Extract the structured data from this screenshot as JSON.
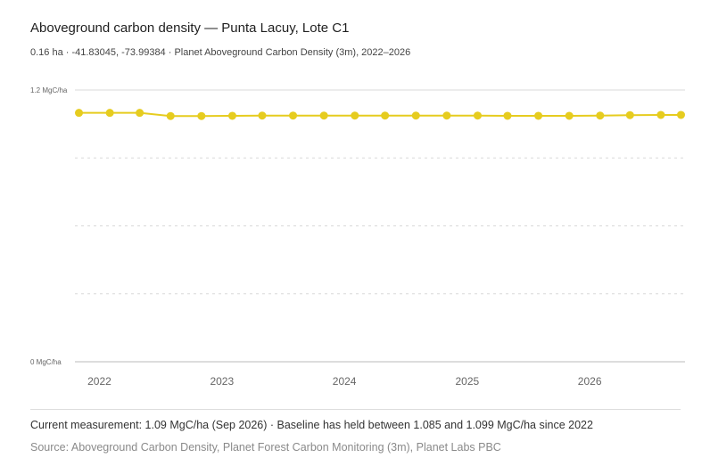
{
  "header": {
    "title": "Aboveground carbon density — Punta Lacuy, Lote C1",
    "subtitle": "0.16 ha · -41.83045, -73.99384 · Planet Aboveground Carbon Density (3m), 2022–2026"
  },
  "footer": {
    "summary": "Current measurement: 1.09 MgC/ha (Sep 2026) · Baseline has held between 1.085 and 1.099 MgC/ha since 2022",
    "source": "Source: Aboveground Carbon Density, Planet Forest Carbon Monitoring (3m), Planet Labs PBC"
  },
  "colors": {
    "series": "#e6cc1f",
    "grid": "#d9d9d9",
    "axis": "#bbbbbb",
    "tick_text": "#666666"
  },
  "chart_data": {
    "type": "line",
    "x_tick_labels": [
      "2022",
      "2023",
      "2024",
      "2025",
      "2026"
    ],
    "y_tick_labels": [
      "0 MgC/ha",
      "1.2 MgC/ha"
    ],
    "ylim": [
      0,
      1.2
    ],
    "xlim": [
      "2021-10-20",
      "2026-10-12"
    ],
    "grid": true,
    "legend": "none",
    "series": [
      {
        "name": "",
        "x": [
          "2021-11-01",
          "2022-02-01",
          "2022-05-01",
          "2022-08-01",
          "2022-11-01",
          "2023-02-01",
          "2023-05-01",
          "2023-08-01",
          "2023-11-01",
          "2024-02-01",
          "2024-05-01",
          "2024-08-01",
          "2024-11-01",
          "2025-02-01",
          "2025-05-01",
          "2025-08-01",
          "2025-11-01",
          "2026-02-01",
          "2026-05-01",
          "2026-08-01",
          "2026-09-30"
        ],
        "y": [
          1.099,
          1.099,
          1.099,
          1.085,
          1.085,
          1.086,
          1.087,
          1.087,
          1.087,
          1.087,
          1.087,
          1.087,
          1.087,
          1.087,
          1.086,
          1.086,
          1.086,
          1.087,
          1.089,
          1.09,
          1.09
        ]
      }
    ]
  }
}
